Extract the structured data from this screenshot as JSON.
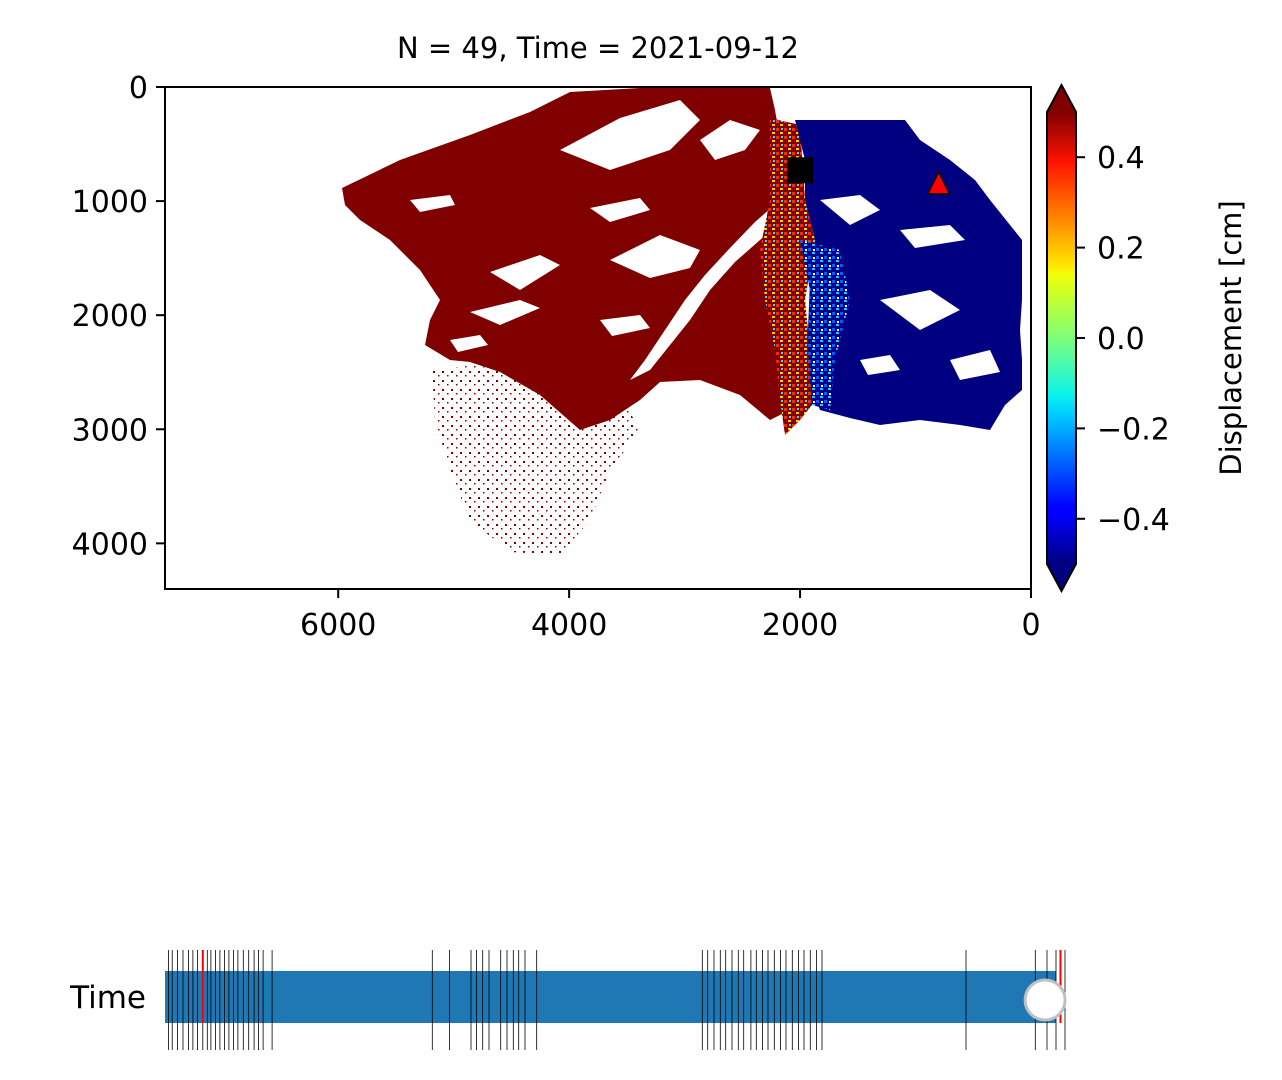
{
  "chart_data": {
    "type": "heatmap",
    "title": "N = 49, Time = 2021-09-12",
    "xlim": [
      7500,
      0
    ],
    "ylim": [
      4400,
      0
    ],
    "x_ticks": [
      "6000",
      "4000",
      "2000",
      "0"
    ],
    "x_tick_values": [
      6000,
      4000,
      2000,
      0
    ],
    "y_ticks": [
      "0",
      "1000",
      "2000",
      "3000",
      "4000"
    ],
    "y_tick_values": [
      0,
      1000,
      2000,
      3000,
      4000
    ],
    "colorbar": {
      "label": "Displacement [cm]",
      "colormap": "jet",
      "range": [
        -0.5,
        0.5
      ],
      "extend": "both",
      "ticks": [
        "0.4",
        "0.2",
        "0.0",
        "−0.2",
        "−0.4"
      ],
      "tick_values": [
        0.4,
        0.2,
        0.0,
        -0.2,
        -0.4
      ]
    },
    "markers": [
      {
        "shape": "square",
        "color": "#000000",
        "x": 2000,
        "y": 730
      },
      {
        "shape": "triangle",
        "color": "#ff0000",
        "x": 800,
        "y": 850
      }
    ],
    "regions": [
      {
        "side": "west",
        "x_range": [
          2200,
          6000
        ],
        "value": 0.5,
        "color": "#800000"
      },
      {
        "side": "east",
        "x_range": [
          0,
          2200
        ],
        "value": -0.5,
        "color": "#000080"
      }
    ]
  },
  "slider": {
    "label": "Time",
    "value_fraction": 0.99,
    "current_index": 49,
    "track_color": "#1f77b4",
    "handle_color": "#ffffff",
    "red_marks": [
      0.042,
      0.995
    ],
    "tick_positions": [
      0.004,
      0.008,
      0.014,
      0.02,
      0.026,
      0.031,
      0.036,
      0.042,
      0.047,
      0.051,
      0.056,
      0.061,
      0.066,
      0.071,
      0.076,
      0.081,
      0.087,
      0.093,
      0.099,
      0.104,
      0.109,
      0.119,
      0.297,
      0.316,
      0.34,
      0.346,
      0.353,
      0.36,
      0.373,
      0.38,
      0.387,
      0.393,
      0.4,
      0.413,
      0.597,
      0.603,
      0.61,
      0.617,
      0.623,
      0.63,
      0.637,
      0.643,
      0.651,
      0.657,
      0.664,
      0.67,
      0.677,
      0.684,
      0.69,
      0.697,
      0.704,
      0.71,
      0.717,
      0.724,
      0.73,
      0.89,
      0.967,
      0.98,
      0.99,
      1.0
    ]
  }
}
